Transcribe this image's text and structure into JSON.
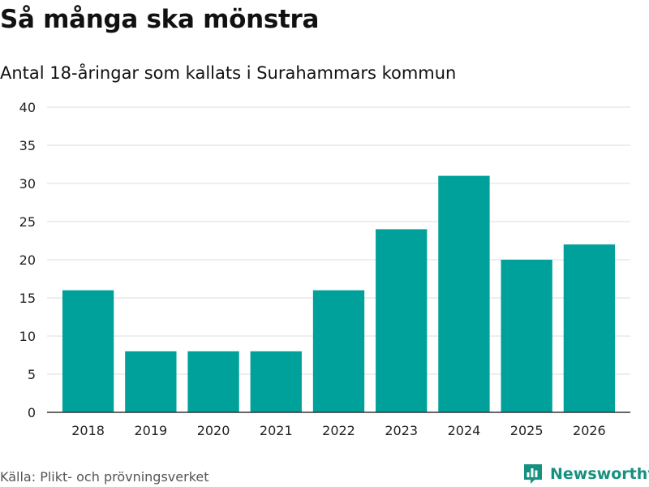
{
  "header": {
    "title": "Så många ska mönstra",
    "subtitle": "Antal 18-åringar som kallats i Surahammars kommun"
  },
  "footer": {
    "source": "Källa: Plikt- och prövningsverket",
    "brand": "Newsworthy"
  },
  "colors": {
    "bar": "#00a19a",
    "brand": "#17917f",
    "grid": "#dddddd",
    "axis": "#333333"
  },
  "chart_data": {
    "type": "bar",
    "title": "Så många ska mönstra",
    "subtitle": "Antal 18-åringar som kallats i Surahammars kommun",
    "xlabel": "",
    "ylabel": "",
    "categories": [
      "2018",
      "2019",
      "2020",
      "2021",
      "2022",
      "2023",
      "2024",
      "2025",
      "2026"
    ],
    "values": [
      16,
      8,
      8,
      8,
      16,
      24,
      31,
      20,
      22
    ],
    "ylim": [
      0,
      40
    ],
    "yticks": [
      0,
      5,
      10,
      15,
      20,
      25,
      30,
      35,
      40
    ],
    "grid": true,
    "legend": "none"
  }
}
